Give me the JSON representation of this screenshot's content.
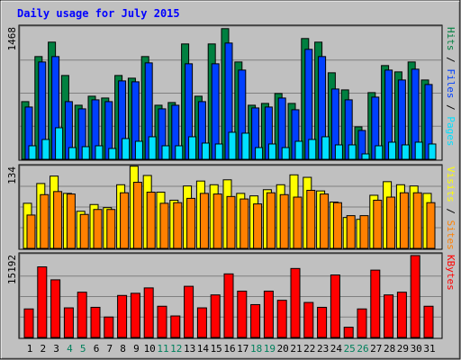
{
  "title": "Daily usage for July 2015",
  "colors": {
    "frame_bg": "#c0c0c0",
    "title": "#0000ff",
    "hits": "#008040",
    "files": "#0040ff",
    "pages": "#00e0ff",
    "visits": "#ffff00",
    "sites": "#ff8000",
    "kbytes": "#ff0000",
    "weekend_tick": "#00805c",
    "weekday_tick": "#000000"
  },
  "chart_data": [
    {
      "type": "bar",
      "name": "hits-files-pages",
      "y_max_label": "1468",
      "ylim": [
        0,
        1468
      ],
      "right_labels": [
        "Pages",
        "Files",
        "Hits"
      ],
      "categories": [
        "1",
        "2",
        "3",
        "4",
        "5",
        "6",
        "7",
        "8",
        "9",
        "10",
        "11",
        "12",
        "13",
        "14",
        "15",
        "16",
        "17",
        "18",
        "19",
        "20",
        "21",
        "22",
        "23",
        "24",
        "25",
        "26",
        "27",
        "28",
        "29",
        "30",
        "31"
      ],
      "series": [
        {
          "name": "Hits",
          "values": [
            640,
            1140,
            1300,
            930,
            600,
            700,
            680,
            930,
            900,
            1140,
            600,
            630,
            1280,
            700,
            1280,
            1450,
            1080,
            600,
            620,
            730,
            620,
            1340,
            1300,
            960,
            770,
            360,
            740,
            1040,
            970,
            1080,
            880
          ]
        },
        {
          "name": "Files",
          "values": [
            580,
            1080,
            1140,
            640,
            560,
            660,
            640,
            870,
            860,
            1070,
            560,
            600,
            1060,
            640,
            1060,
            1290,
            990,
            570,
            580,
            680,
            550,
            1220,
            1140,
            780,
            660,
            320,
            690,
            990,
            880,
            1000,
            830
          ]
        },
        {
          "name": "Pages",
          "values": [
            150,
            220,
            350,
            130,
            140,
            150,
            120,
            230,
            200,
            250,
            150,
            150,
            250,
            180,
            170,
            300,
            290,
            130,
            170,
            130,
            200,
            220,
            250,
            160,
            160,
            60,
            150,
            190,
            160,
            190,
            170
          ]
        }
      ]
    },
    {
      "type": "bar",
      "name": "visits-sites",
      "y_max_label": "134",
      "ylim": [
        0,
        134
      ],
      "right_labels": [
        "Sites",
        "Visits"
      ],
      "categories": [
        "1",
        "2",
        "3",
        "4",
        "5",
        "6",
        "7",
        "8",
        "9",
        "10",
        "11",
        "12",
        "13",
        "14",
        "15",
        "16",
        "17",
        "18",
        "19",
        "20",
        "21",
        "22",
        "23",
        "24",
        "25",
        "26",
        "27",
        "28",
        "29",
        "30",
        "31"
      ],
      "series": [
        {
          "name": "Visits",
          "values": [
            73,
            105,
            117,
            89,
            60,
            71,
            66,
            103,
            133,
            118,
            91,
            78,
            101,
            109,
            103,
            111,
            89,
            85,
            95,
            103,
            119,
            115,
            93,
            75,
            50,
            47,
            86,
            108,
            103,
            101,
            89
          ]
        },
        {
          "name": "Sites",
          "values": [
            54,
            87,
            92,
            88,
            55,
            63,
            63,
            90,
            107,
            91,
            73,
            74,
            81,
            89,
            88,
            84,
            80,
            72,
            90,
            87,
            83,
            94,
            88,
            74,
            53,
            53,
            78,
            83,
            90,
            90,
            74
          ]
        }
      ]
    },
    {
      "type": "bar",
      "name": "kbytes",
      "y_max_label": "15192",
      "ylim": [
        0,
        15192
      ],
      "right_labels": [
        "KBytes"
      ],
      "categories": [
        "1",
        "2",
        "3",
        "4",
        "5",
        "6",
        "7",
        "8",
        "9",
        "10",
        "11",
        "12",
        "13",
        "14",
        "15",
        "16",
        "17",
        "18",
        "19",
        "20",
        "21",
        "22",
        "23",
        "24",
        "25",
        "26",
        "27",
        "28",
        "29",
        "30",
        "31"
      ],
      "series": [
        {
          "name": "KBytes",
          "values": [
            5300,
            13100,
            10700,
            5500,
            8400,
            5600,
            3800,
            7800,
            8200,
            9200,
            5800,
            4000,
            9500,
            5500,
            7900,
            11800,
            8600,
            6100,
            8600,
            6900,
            12800,
            6500,
            5600,
            11600,
            1900,
            5300,
            12500,
            7900,
            8400,
            15200,
            5800
          ]
        }
      ]
    }
  ],
  "x_ticks": {
    "labels": [
      "1",
      "2",
      "3",
      "4",
      "5",
      "6",
      "7",
      "8",
      "9",
      "10",
      "11",
      "12",
      "13",
      "14",
      "15",
      "16",
      "17",
      "18",
      "19",
      "20",
      "21",
      "22",
      "23",
      "24",
      "25",
      "26",
      "27",
      "28",
      "29",
      "30",
      "31"
    ],
    "weekend": [
      false,
      false,
      false,
      true,
      true,
      false,
      false,
      false,
      false,
      false,
      true,
      true,
      false,
      false,
      false,
      false,
      false,
      true,
      true,
      false,
      false,
      false,
      false,
      false,
      true,
      true,
      false,
      false,
      false,
      false,
      false
    ]
  }
}
